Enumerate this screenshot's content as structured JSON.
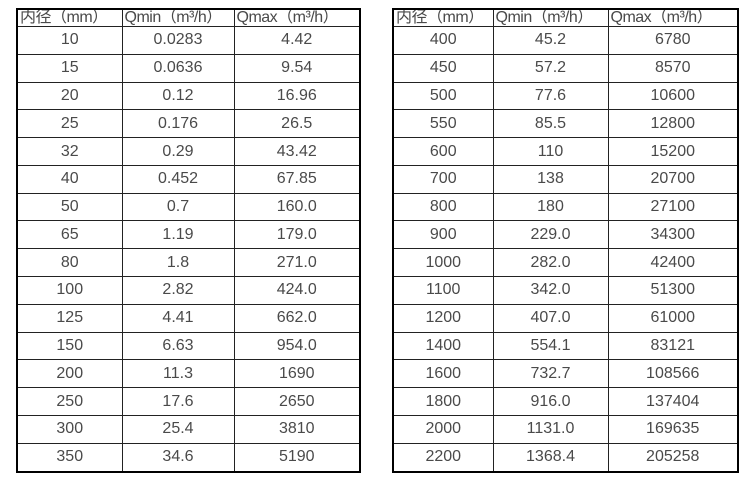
{
  "colors": {
    "background": "#ffffff",
    "text": "#4a4a4a",
    "border": "#000000"
  },
  "headers": [
    "内径（mm）",
    "Qmin（m³/h）",
    "Qmax（m³/h）"
  ],
  "left_table": {
    "rows": [
      [
        "10",
        "0.0283",
        "4.42"
      ],
      [
        "15",
        "0.0636",
        "9.54"
      ],
      [
        "20",
        "0.12",
        "16.96"
      ],
      [
        "25",
        "0.176",
        "26.5"
      ],
      [
        "32",
        "0.29",
        "43.42"
      ],
      [
        "40",
        "0.452",
        "67.85"
      ],
      [
        "50",
        "0.7",
        "160.0"
      ],
      [
        "65",
        "1.19",
        "179.0"
      ],
      [
        "80",
        "1.8",
        "271.0"
      ],
      [
        "100",
        "2.82",
        "424.0"
      ],
      [
        "125",
        "4.41",
        "662.0"
      ],
      [
        "150",
        "6.63",
        "954.0"
      ],
      [
        "200",
        "11.3",
        "1690"
      ],
      [
        "250",
        "17.6",
        "2650"
      ],
      [
        "300",
        "25.4",
        "3810"
      ],
      [
        "350",
        "34.6",
        "5190"
      ]
    ]
  },
  "right_table": {
    "rows": [
      [
        "400",
        "45.2",
        "6780"
      ],
      [
        "450",
        "57.2",
        "8570"
      ],
      [
        "500",
        "77.6",
        "10600"
      ],
      [
        "550",
        "85.5",
        "12800"
      ],
      [
        "600",
        "110",
        "15200"
      ],
      [
        "700",
        "138",
        "20700"
      ],
      [
        "800",
        "180",
        "27100"
      ],
      [
        "900",
        "229.0",
        "34300"
      ],
      [
        "1000",
        "282.0",
        "42400"
      ],
      [
        "1100",
        "342.0",
        "51300"
      ],
      [
        "1200",
        "407.0",
        "61000"
      ],
      [
        "1400",
        "554.1",
        "83121"
      ],
      [
        "1600",
        "732.7",
        "108566"
      ],
      [
        "1800",
        "916.0",
        "137404"
      ],
      [
        "2000",
        "1131.0",
        "169635"
      ],
      [
        "2200",
        "1368.4",
        "205258"
      ]
    ]
  }
}
